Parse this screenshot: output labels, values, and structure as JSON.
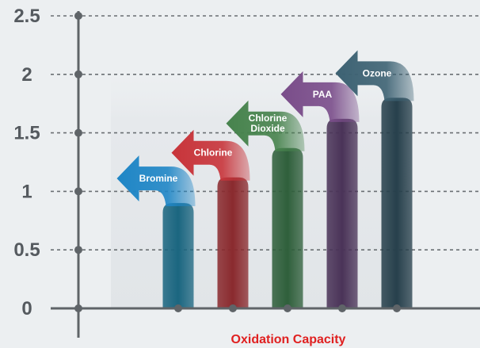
{
  "chart_data": {
    "type": "bar",
    "categories": [
      "Bromine",
      "Chlorine",
      "Chlorine Dioxide",
      "PAA",
      "Ozone"
    ],
    "values": [
      0.9,
      1.12,
      1.37,
      1.62,
      1.8
    ],
    "xlabel": "Oxidation Capacity",
    "ylabel": "",
    "ylim": [
      0,
      2.5
    ],
    "yticks": [
      "0",
      "0.5",
      "1",
      "1.5",
      "2",
      "2.5"
    ],
    "grid": true,
    "legend": "none",
    "colors": {
      "bars": [
        "#1b6680",
        "#8a2a2e",
        "#2f5f3b",
        "#4a3358",
        "#27404c"
      ],
      "arrows": [
        "#1f86c6",
        "#c8343a",
        "#47834d",
        "#7a4d8a",
        "#3d6273"
      ],
      "axis": "#5f6468",
      "grid": "#6a6f73",
      "xlabel": "#e02020",
      "background": "#eceff1"
    }
  }
}
